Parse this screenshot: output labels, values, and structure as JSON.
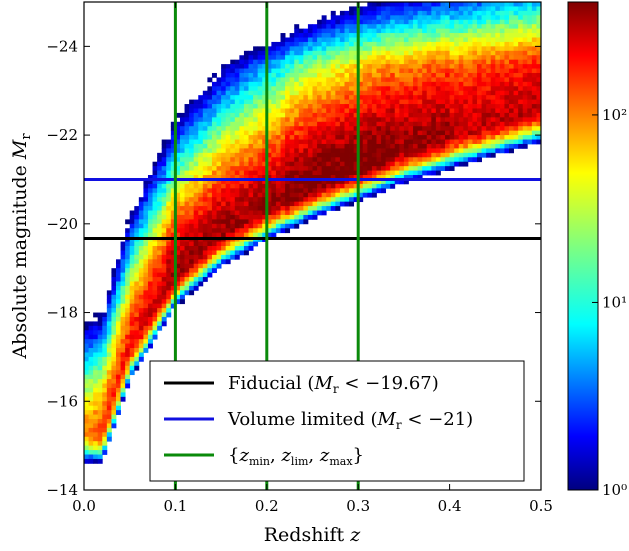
{
  "chart_data": {
    "type": "heatmap",
    "title": "",
    "xlabel": "Redshift z",
    "ylabel": "Absolute magnitude M_r",
    "xlim": [
      0.0,
      0.5
    ],
    "ylim": [
      -14,
      -25
    ],
    "y_inverted": true,
    "xticks": [
      0.0,
      0.1,
      0.2,
      0.3,
      0.4,
      0.5
    ],
    "xtick_labels": [
      "0.0",
      "0.1",
      "0.2",
      "0.3",
      "0.4",
      "0.5"
    ],
    "yticks": [
      -24,
      -22,
      -20,
      -18,
      -16,
      -14
    ],
    "ytick_labels": [
      "−24",
      "−22",
      "−20",
      "−18",
      "−16",
      "−14"
    ],
    "colorbar": {
      "scale": "log",
      "range": [
        1,
        400
      ],
      "ticks": [
        1,
        10,
        100
      ],
      "tick_labels": [
        "10⁰",
        "10¹",
        "10²"
      ],
      "colormap": "jet"
    },
    "density_model": {
      "description": "2D histogram of galaxy counts in (z, M_r); dense ridge following the flux limit",
      "ridge": [
        {
          "z": 0.02,
          "M": -15.3
        },
        {
          "z": 0.05,
          "M": -17.2
        },
        {
          "z": 0.1,
          "M": -18.9
        },
        {
          "z": 0.15,
          "M": -19.8
        },
        {
          "z": 0.2,
          "M": -20.4
        },
        {
          "z": 0.25,
          "M": -20.9
        },
        {
          "z": 0.3,
          "M": -21.3
        },
        {
          "z": 0.35,
          "M": -21.7
        },
        {
          "z": 0.4,
          "M": -22.0
        },
        {
          "z": 0.45,
          "M": -22.3
        },
        {
          "z": 0.5,
          "M": -22.6
        }
      ],
      "peak_count": 350
    },
    "reference_lines": [
      {
        "name": "Fiducial (M_r < −19.67)",
        "orientation": "horizontal",
        "value": -19.67,
        "color": "#000000"
      },
      {
        "name": "Volume limited (M_r < −21)",
        "orientation": "horizontal",
        "value": -21.0,
        "color": "#1010e0"
      },
      {
        "name": "{z_min, z_lim, z_max}",
        "orientation": "vertical",
        "values": [
          0.1,
          0.2,
          0.3
        ],
        "color": "#0a8a0a"
      }
    ],
    "legend": {
      "placement": "lower-right",
      "entries": [
        {
          "label": "Fiducial (M_r < −19.67)",
          "color": "#000000"
        },
        {
          "label": "Volume limited (M_r < −21)",
          "color": "#1010e0"
        },
        {
          "label": "{z_min, z_lim, z_max}",
          "color": "#0a8a0a"
        }
      ]
    },
    "grid": false
  }
}
